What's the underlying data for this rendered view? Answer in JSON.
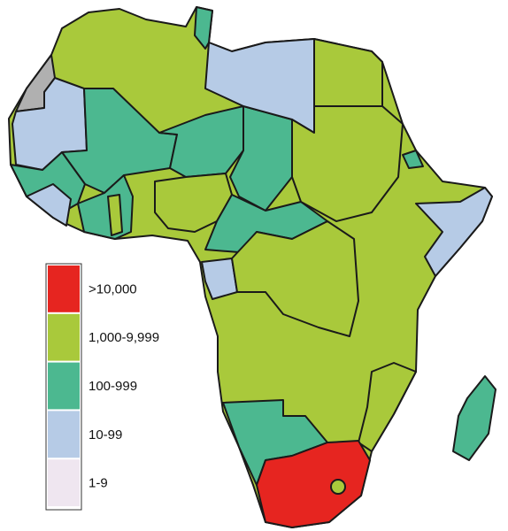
{
  "legend": {
    "items": [
      {
        "label": ">10,000",
        "color": "#e62520"
      },
      {
        "label": "1,000-9,999",
        "color": "#a9c93b"
      },
      {
        "label": "100-999",
        "color": "#4cb890"
      },
      {
        "label": "10-99",
        "color": "#b6cbe6"
      },
      {
        "label": "1-9",
        "color": "#efe6f0"
      }
    ]
  }
}
